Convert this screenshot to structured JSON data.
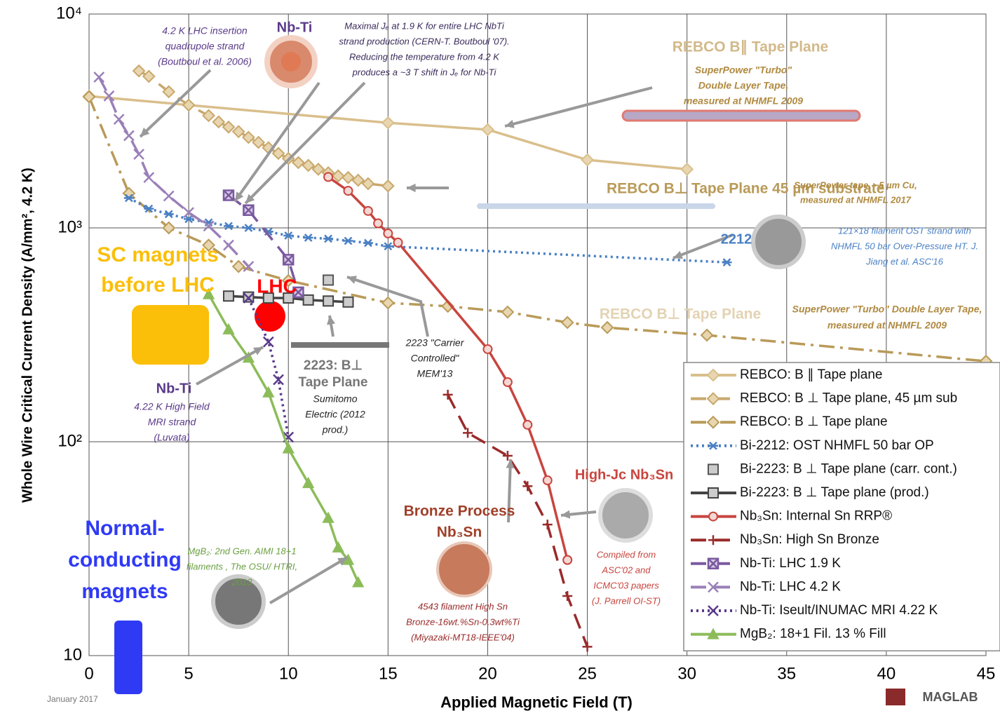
{
  "chart_data": {
    "type": "line",
    "x_label": "Applied Magnetic Field (T)",
    "y_label": "Whole Wire Critical Current Density (A/mm², 4.2 K)",
    "xlim": [
      0,
      45
    ],
    "xticks": [
      0,
      5,
      10,
      15,
      20,
      25,
      30,
      35,
      40,
      45
    ],
    "ylim": [
      10,
      10000
    ],
    "yticks": [
      10,
      {
        "value": 100,
        "label": "10²"
      },
      {
        "value": 1000,
        "label": "10³"
      },
      {
        "value": 10000,
        "label": "10⁴"
      }
    ],
    "log_y": true,
    "grid": true,
    "legend": "lower right",
    "series": [
      {
        "name": "REBCO: B ∥ Tape plane",
        "color": "#d9bf8c",
        "dash": "solid",
        "marker": "diamond",
        "x": [
          0,
          15,
          20,
          25,
          30
        ],
        "values": [
          4130,
          3100,
          2880,
          2080,
          1880
        ]
      },
      {
        "name": "REBCO: B ⊥ Tape plane, 45 µm sub",
        "color": "#c9a86c",
        "dash": "dashed",
        "marker": "diamond",
        "x": [
          2.5,
          3,
          4,
          5,
          6,
          6.5,
          7,
          7.5,
          8,
          8.5,
          9,
          9.5,
          10,
          10.5,
          11,
          11.5,
          12,
          12.5,
          13,
          13.5,
          14,
          15
        ],
        "values": [
          5420,
          5110,
          4330,
          3750,
          3350,
          3130,
          2960,
          2820,
          2650,
          2510,
          2370,
          2230,
          2110,
          2020,
          1960,
          1880,
          1810,
          1750,
          1720,
          1670,
          1610,
          1570
        ]
      },
      {
        "name": "REBCO: B ⊥ Tape plane",
        "color": "#b99a58",
        "dash": "dashdot",
        "marker": "diamond",
        "x": [
          0,
          2,
          4,
          6,
          7.5,
          10,
          15,
          18,
          21,
          24,
          26,
          31,
          45
        ],
        "values": [
          4100,
          1450,
          1000,
          830,
          660,
          567,
          446,
          430,
          404,
          361,
          342,
          315,
          238
        ]
      },
      {
        "name": "Bi-2212: OST NHMFL 50 bar OP",
        "color": "#4a80c4",
        "dash": "dotted",
        "marker": "asterisk",
        "x": [
          2,
          3,
          4,
          5,
          6,
          7,
          8,
          9,
          10,
          11,
          12,
          13,
          14,
          15,
          32
        ],
        "values": [
          1380,
          1230,
          1160,
          1100,
          1060,
          1020,
          1000,
          960,
          920,
          900,
          890,
          870,
          850,
          820,
          690
        ]
      },
      {
        "name": "Bi-2223: B ⊥ Tape plane (carr. cont.)",
        "color": "#555555",
        "dash": "none",
        "marker": "square",
        "x": [
          12
        ],
        "values": [
          570
        ]
      },
      {
        "name": "Bi-2223: B ⊥ Tape plane (prod.)",
        "color": "#444444",
        "dash": "solid",
        "marker": "square",
        "x": [
          7,
          8,
          9,
          10,
          11,
          12,
          13
        ],
        "values": [
          480,
          475,
          470,
          470,
          460,
          455,
          450
        ]
      },
      {
        "name": "Nb₃Sn: Internal Sn RRP®",
        "color": "#c8453f",
        "dash": "solid",
        "marker": "circle",
        "x": [
          12,
          13,
          14,
          14.5,
          15,
          15.5,
          20,
          21,
          22,
          23,
          24
        ],
        "values": [
          1730,
          1490,
          1200,
          1050,
          942,
          854,
          271,
          190,
          120,
          66,
          28
        ]
      },
      {
        "name": "Nb₃Sn: High Sn Bronze",
        "color": "#9a2a2a",
        "dash": "dashed",
        "marker": "plus",
        "x": [
          18,
          19,
          21,
          22,
          23,
          24,
          25
        ],
        "values": [
          166,
          110,
          86,
          62,
          41,
          19,
          11
        ]
      },
      {
        "name": "Nb-Ti: LHC 1.9 K",
        "color": "#7a5aa0",
        "dash": "dashed",
        "marker": "xsquare",
        "x": [
          7,
          8,
          10,
          10.5
        ],
        "values": [
          1420,
          1210,
          710,
          500
        ]
      },
      {
        "name": "Nb-Ti: LHC 4.2 K",
        "color": "#9a80b8",
        "dash": "dashed",
        "marker": "x",
        "x": [
          0.5,
          1,
          1.5,
          2,
          2.5,
          3,
          4,
          5,
          6,
          7,
          8
        ],
        "values": [
          5070,
          4140,
          3220,
          2700,
          2210,
          1720,
          1410,
          1180,
          1020,
          830,
          660
        ]
      },
      {
        "name": "Nb-Ti: Iseult/INUMAC MRI 4.22 K",
        "color": "#5a3a8a",
        "dash": "dotted",
        "marker": "x",
        "x": [
          8,
          9,
          9.5,
          10
        ],
        "values": [
          470,
          293,
          195,
          105
        ]
      },
      {
        "name": "MgB₂: 18+1 Fil. 13 % Fill",
        "color": "#8cbc5a",
        "dash": "solid",
        "marker": "triangle",
        "x": [
          6,
          7,
          8,
          9,
          10,
          11,
          12,
          12.5,
          13,
          13.5
        ],
        "values": [
          489,
          335,
          247,
          170,
          93,
          64,
          44,
          32,
          28,
          22
        ]
      }
    ],
    "annotations": [
      [
        "4.2 K LHC insertion",
        "quadrupole strand",
        "(Boutboul et al. 2006)"
      ],
      [
        "Nb-Ti"
      ],
      [
        "Maximal Jₑ at 1.9 K for entire LHC NbTi",
        "strand production (CERN-T. Boutboul '07).",
        "Reducing the temperature from 4.2 K",
        "produces a ~3 T shift in Jₑ for Nb-Ti"
      ],
      [
        "REBCO B∥ Tape Plane"
      ],
      [
        "SuperPower \"Turbo\"",
        "Double Layer Tape,",
        "measured at NHMFL 2009"
      ],
      [
        "REBCO B⊥ Tape Plane 45 µm substrate"
      ],
      [
        "SuperPower tape, ~5  µm Cu,",
        "measured at NHMFL 2017"
      ],
      [
        "2212"
      ],
      [
        "121×18 filament OST strand with",
        "NHMFL 50 bar Over-Pressure HT. J.",
        "Jiang et al. ASC'16"
      ],
      [
        "SC magnets",
        "before LHC"
      ],
      [
        "LHC"
      ],
      [
        "REBCO B⊥ Tape Plane"
      ],
      [
        "SuperPower \"Turbo\" Double Layer Tape,",
        "measured at NHMFL 2009"
      ],
      [
        "2223 \"Carrier",
        "Controlled\"",
        "MEM'13"
      ],
      [
        "2223: B⊥",
        "Tape Plane"
      ],
      [
        "Sumitomo",
        "Electric (2012",
        "prod.)"
      ],
      [
        "Nb-Ti"
      ],
      [
        "4.22 K High Field",
        "MRI strand",
        "(Luvata)"
      ],
      [
        "High-Jc Nb₃Sn"
      ],
      [
        "Bronze Process",
        "Nb₃Sn"
      ],
      [
        "Normal-",
        "conducting",
        "magnets"
      ],
      [
        "MgB₂: 2nd Gen. AIMI 18+1",
        "filaments , The OSU/ HTRI,",
        "2013"
      ],
      [
        "Compiled from",
        "ASC'02 and",
        "ICMC'03 papers",
        "(J. Parrell OI-ST)"
      ],
      [
        "4543 filament High Sn",
        "Bronze-16wt.%Sn-0.3wt%Ti",
        "(Miyazaki-MT18-IEEE'04)"
      ],
      [
        "January 2017"
      ],
      [
        "MAGLAB"
      ]
    ]
  }
}
